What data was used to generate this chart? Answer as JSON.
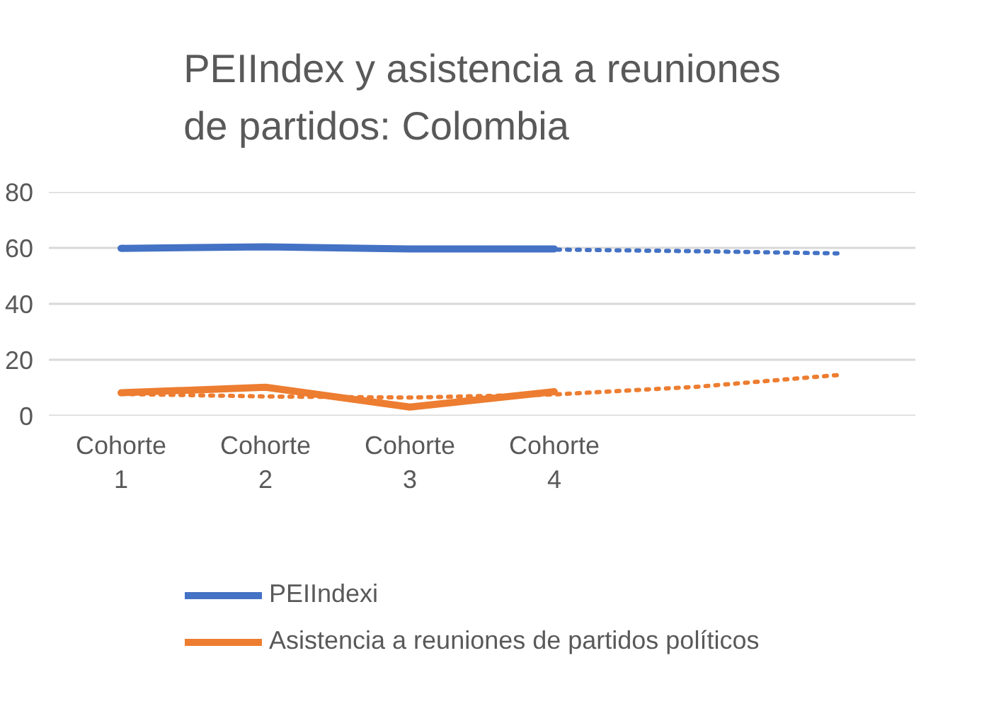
{
  "chart_data": {
    "type": "line",
    "title": "PEIIndex y asistencia a reuniones de partidos: Colombia",
    "categories": [
      "Cohorte 1",
      "Cohorte 2",
      "Cohorte 3",
      "Cohorte 4",
      null,
      null
    ],
    "series": [
      {
        "name": "PEIIndexi",
        "color": "#4472c4",
        "values": [
          59.8,
          60.4,
          59.6,
          59.6,
          null,
          null
        ]
      },
      {
        "name": "Asistencia a reuniones de partidos políticos",
        "color": "#ed7d31",
        "values": [
          8.2,
          10.2,
          3.1,
          8.6,
          null,
          null
        ]
      },
      {
        "color": "#4472c4",
        "line_style": "dotted",
        "values": [
          60.3,
          60.0,
          59.8,
          59.4,
          58.8,
          58.0
        ]
      },
      {
        "color": "#ed7d31",
        "line_style": "dotted",
        "values": [
          7.8,
          6.9,
          6.5,
          7.6,
          10.4,
          14.7
        ]
      }
    ],
    "ylim": [
      0,
      80
    ],
    "yticks": [
      0,
      20,
      40,
      60,
      80
    ],
    "grid": "y",
    "legend": "bottom"
  }
}
